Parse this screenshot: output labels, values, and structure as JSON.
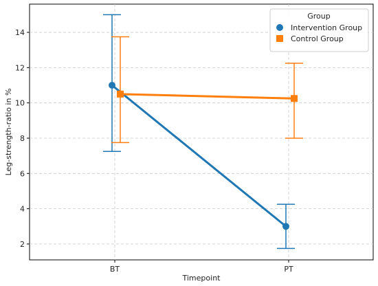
{
  "chart_data": {
    "type": "line",
    "categories": [
      "BT",
      "PT"
    ],
    "xlabel": "Timepoint",
    "ylabel": "Leg-strength-ratio in %",
    "ylim": [
      1.1,
      15.6
    ],
    "yticks": [
      2,
      4,
      6,
      8,
      10,
      12,
      14
    ],
    "grid": true,
    "legend": {
      "title": "Group",
      "placement": "top-right"
    },
    "series": [
      {
        "name": "Intervention Group",
        "color": "#1f77b4",
        "marker": "circle",
        "values": [
          11.0,
          3.0
        ],
        "error_low": [
          7.25,
          1.75
        ],
        "error_high": [
          15.0,
          4.25
        ]
      },
      {
        "name": "Control Group",
        "color": "#ff7f0e",
        "marker": "square",
        "values": [
          10.5,
          10.25
        ],
        "error_low": [
          7.75,
          8.0
        ],
        "error_high": [
          13.75,
          12.25
        ]
      }
    ]
  }
}
